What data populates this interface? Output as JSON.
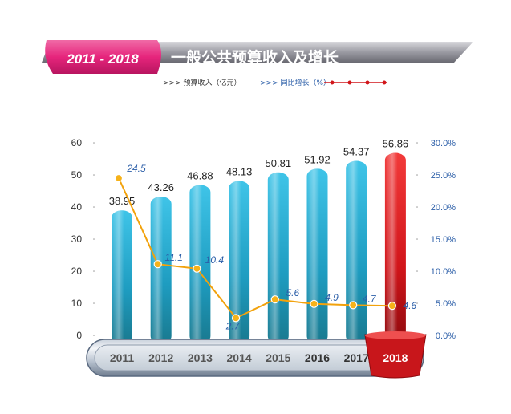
{
  "header": {
    "year_range": "2011 - 2018",
    "title": "一般公共预算收入及增长"
  },
  "legend": {
    "bar_label": ">>> 预算收入（亿元）",
    "line_label": ">>> 同比增长（%）"
  },
  "colors": {
    "bar_main": "#1e9cc0",
    "bar_highlight": "#d1151a",
    "line": "#f2a20c",
    "right_axis": "#2b5ea8",
    "header_pink": "#e6257c"
  },
  "chart_data": {
    "type": "bar",
    "categories": [
      "2011",
      "2012",
      "2013",
      "2014",
      "2015",
      "2016",
      "2017",
      "2018"
    ],
    "series": [
      {
        "values": [
          38.95,
          43.26,
          46.88,
          48.13,
          50.81,
          51.92,
          54.37,
          56.86
        ]
      },
      {
        "values": [
          24.5,
          11.1,
          10.4,
          2.7,
          5.6,
          4.9,
          4.7,
          4.6
        ]
      }
    ],
    "value_labels": [
      "38.95",
      "43.26",
      "46.88",
      "48.13",
      "50.81",
      "51.92",
      "54.37",
      "56.86"
    ],
    "growth_labels": [
      "24.5",
      "11.1",
      "10.4",
      "2.7",
      "5.6",
      "4.9",
      "4.7",
      "4.6"
    ],
    "y_left_ticks": [
      "0",
      "10",
      "20",
      "30",
      "40",
      "50",
      "60"
    ],
    "y_right_ticks": [
      "0.0%",
      "5.0%",
      "10.0%",
      "15.0%",
      "20.0%",
      "25.0%",
      "30.0%"
    ],
    "ylim": [
      0,
      60
    ],
    "y2lim": [
      0,
      30
    ],
    "highlight_category": "2018"
  }
}
